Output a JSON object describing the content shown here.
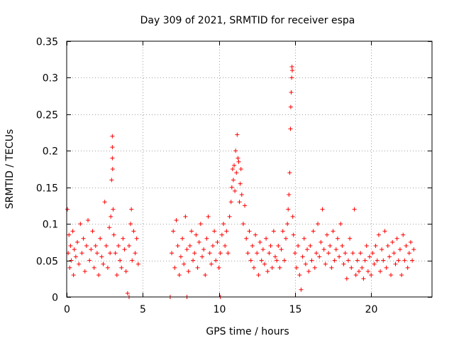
{
  "chart_data": {
    "type": "scatter",
    "title": "Day 309 of 2021, SRMTID for receiver espa",
    "xlabel": "GPS time / hours",
    "ylabel": "SRMTID / TECUs",
    "xlim": [
      0,
      24
    ],
    "ylim": [
      0,
      0.35
    ],
    "x_ticks": [
      0,
      5,
      10,
      15,
      20
    ],
    "x_tick_labels": [
      "0",
      "5",
      "10",
      "15",
      "20"
    ],
    "y_ticks": [
      0,
      0.05,
      0.1,
      0.15,
      0.2,
      0.25,
      0.3,
      0.35
    ],
    "y_tick_labels": [
      "0",
      "0.05",
      "0.1",
      "0.15",
      "0.2",
      "0.25",
      "0.3",
      "0.35"
    ],
    "grid": true,
    "marker": "+",
    "color": "#ff0000",
    "series": [
      {
        "name": "SRMTID",
        "points": [
          [
            0.05,
            0.12
          ],
          [
            0.1,
            0.06
          ],
          [
            0.15,
            0.085
          ],
          [
            0.2,
            0.04
          ],
          [
            0.25,
            0.07
          ],
          [
            0.3,
            0.05
          ],
          [
            0.4,
            0.09
          ],
          [
            0.45,
            0.03
          ],
          [
            0.5,
            0.065
          ],
          [
            0.6,
            0.055
          ],
          [
            0.7,
            0.075
          ],
          [
            0.8,
            0.045
          ],
          [
            0.9,
            0.1
          ],
          [
            1.0,
            0.06
          ],
          [
            1.1,
            0.08
          ],
          [
            1.2,
            0.035
          ],
          [
            1.3,
            0.07
          ],
          [
            1.4,
            0.105
          ],
          [
            1.5,
            0.05
          ],
          [
            1.6,
            0.065
          ],
          [
            1.7,
            0.09
          ],
          [
            1.8,
            0.04
          ],
          [
            1.9,
            0.07
          ],
          [
            2.0,
            0.06
          ],
          [
            2.1,
            0.03
          ],
          [
            2.2,
            0.08
          ],
          [
            2.3,
            0.055
          ],
          [
            2.4,
            0.045
          ],
          [
            2.5,
            0.13
          ],
          [
            2.6,
            0.07
          ],
          [
            2.7,
            0.04
          ],
          [
            2.8,
            0.095
          ],
          [
            2.85,
            0.06
          ],
          [
            2.9,
            0.11
          ],
          [
            2.95,
            0.16
          ],
          [
            3.0,
            0.22
          ],
          [
            3.0,
            0.205
          ],
          [
            3.0,
            0.19
          ],
          [
            3.02,
            0.175
          ],
          [
            3.05,
            0.12
          ],
          [
            3.1,
            0.085
          ],
          [
            3.2,
            0.06
          ],
          [
            3.3,
            0.03
          ],
          [
            3.4,
            0.07
          ],
          [
            3.5,
            0.05
          ],
          [
            3.6,
            0.04
          ],
          [
            3.7,
            0.08
          ],
          [
            3.8,
            0.065
          ],
          [
            3.9,
            0.035
          ],
          [
            4.0,
            0.005
          ],
          [
            4.1,
            0.07
          ],
          [
            4.2,
            0.1
          ],
          [
            4.25,
            0.12
          ],
          [
            4.3,
            0.05
          ],
          [
            4.4,
            0.09
          ],
          [
            4.5,
            0.06
          ],
          [
            4.6,
            0.08
          ],
          [
            4.7,
            0.045
          ],
          [
            6.9,
            0.06
          ],
          [
            7.0,
            0.09
          ],
          [
            7.1,
            0.04
          ],
          [
            7.2,
            0.105
          ],
          [
            7.3,
            0.07
          ],
          [
            7.4,
            0.03
          ],
          [
            7.5,
            0.055
          ],
          [
            7.6,
            0.08
          ],
          [
            7.7,
            0.045
          ],
          [
            7.8,
            0.11
          ],
          [
            7.9,
            0.065
          ],
          [
            8.0,
            0.035
          ],
          [
            8.1,
            0.07
          ],
          [
            8.2,
            0.09
          ],
          [
            8.3,
            0.05
          ],
          [
            8.4,
            0.06
          ],
          [
            8.5,
            0.085
          ],
          [
            8.6,
            0.04
          ],
          [
            8.7,
            0.075
          ],
          [
            8.8,
            0.1
          ],
          [
            8.9,
            0.055
          ],
          [
            9.0,
            0.065
          ],
          [
            9.1,
            0.03
          ],
          [
            9.2,
            0.08
          ],
          [
            9.3,
            0.11
          ],
          [
            9.4,
            0.06
          ],
          [
            9.5,
            0.045
          ],
          [
            9.6,
            0.07
          ],
          [
            9.7,
            0.09
          ],
          [
            9.8,
            0.05
          ],
          [
            9.9,
            0.075
          ],
          [
            10.0,
            0.04
          ],
          [
            10.1,
            0.06
          ],
          [
            10.2,
            0.085
          ],
          [
            10.3,
            0.1
          ],
          [
            10.4,
            0.07
          ],
          [
            10.5,
            0.09
          ],
          [
            10.6,
            0.06
          ],
          [
            10.7,
            0.11
          ],
          [
            10.8,
            0.13
          ],
          [
            10.85,
            0.15
          ],
          [
            10.9,
            0.175
          ],
          [
            10.95,
            0.16
          ],
          [
            11.0,
            0.18
          ],
          [
            11.05,
            0.145
          ],
          [
            11.1,
            0.2
          ],
          [
            11.15,
            0.17
          ],
          [
            11.2,
            0.222
          ],
          [
            11.25,
            0.19
          ],
          [
            11.3,
            0.185
          ],
          [
            11.35,
            0.13
          ],
          [
            11.4,
            0.155
          ],
          [
            11.45,
            0.175
          ],
          [
            11.5,
            0.14
          ],
          [
            11.6,
            0.1
          ],
          [
            11.7,
            0.125
          ],
          [
            11.8,
            0.08
          ],
          [
            11.9,
            0.06
          ],
          [
            12.0,
            0.09
          ],
          [
            12.1,
            0.05
          ],
          [
            12.2,
            0.07
          ],
          [
            12.3,
            0.04
          ],
          [
            12.4,
            0.085
          ],
          [
            12.5,
            0.06
          ],
          [
            12.6,
            0.03
          ],
          [
            12.7,
            0.075
          ],
          [
            12.8,
            0.05
          ],
          [
            12.9,
            0.065
          ],
          [
            13.0,
            0.045
          ],
          [
            13.1,
            0.08
          ],
          [
            13.2,
            0.035
          ],
          [
            13.3,
            0.06
          ],
          [
            13.4,
            0.07
          ],
          [
            13.5,
            0.04
          ],
          [
            13.6,
            0.09
          ],
          [
            13.7,
            0.055
          ],
          [
            13.8,
            0.05
          ],
          [
            13.9,
            0.07
          ],
          [
            14.0,
            0.04
          ],
          [
            14.1,
            0.065
          ],
          [
            14.2,
            0.09
          ],
          [
            14.3,
            0.05
          ],
          [
            14.4,
            0.08
          ],
          [
            14.5,
            0.1
          ],
          [
            14.55,
            0.12
          ],
          [
            14.6,
            0.14
          ],
          [
            14.65,
            0.17
          ],
          [
            14.7,
            0.23
          ],
          [
            14.72,
            0.26
          ],
          [
            14.75,
            0.28
          ],
          [
            14.78,
            0.3
          ],
          [
            14.8,
            0.315
          ],
          [
            14.82,
            0.31
          ],
          [
            14.85,
            0.11
          ],
          [
            14.9,
            0.085
          ],
          [
            15.0,
            0.06
          ],
          [
            15.1,
            0.04
          ],
          [
            15.2,
            0.07
          ],
          [
            15.3,
            0.03
          ],
          [
            15.4,
            0.01
          ],
          [
            15.5,
            0.055
          ],
          [
            15.6,
            0.08
          ],
          [
            15.7,
            0.045
          ],
          [
            15.8,
            0.065
          ],
          [
            15.9,
            0.035
          ],
          [
            16.0,
            0.07
          ],
          [
            16.1,
            0.05
          ],
          [
            16.2,
            0.09
          ],
          [
            16.3,
            0.04
          ],
          [
            16.4,
            0.06
          ],
          [
            16.5,
            0.1
          ],
          [
            16.6,
            0.055
          ],
          [
            16.7,
            0.075
          ],
          [
            16.8,
            0.12
          ],
          [
            16.9,
            0.065
          ],
          [
            17.0,
            0.045
          ],
          [
            17.1,
            0.085
          ],
          [
            17.2,
            0.06
          ],
          [
            17.3,
            0.07
          ],
          [
            17.4,
            0.04
          ],
          [
            17.5,
            0.09
          ],
          [
            17.6,
            0.05
          ],
          [
            17.7,
            0.065
          ],
          [
            17.8,
            0.08
          ],
          [
            17.9,
            0.055
          ],
          [
            18.0,
            0.1
          ],
          [
            18.1,
            0.07
          ],
          [
            18.2,
            0.045
          ],
          [
            18.3,
            0.06
          ],
          [
            18.4,
            0.025
          ],
          [
            18.5,
            0.05
          ],
          [
            18.6,
            0.08
          ],
          [
            18.7,
            0.04
          ],
          [
            18.8,
            0.06
          ],
          [
            18.9,
            0.12
          ],
          [
            19.0,
            0.03
          ],
          [
            19.1,
            0.05
          ],
          [
            19.2,
            0.035
          ],
          [
            19.3,
            0.06
          ],
          [
            19.4,
            0.04
          ],
          [
            19.5,
            0.025
          ],
          [
            19.6,
            0.05
          ],
          [
            19.7,
            0.07
          ],
          [
            19.8,
            0.035
          ],
          [
            19.9,
            0.055
          ],
          [
            20.0,
            0.03
          ],
          [
            20.1,
            0.06
          ],
          [
            20.2,
            0.045
          ],
          [
            20.3,
            0.07
          ],
          [
            20.4,
            0.05
          ],
          [
            20.5,
            0.085
          ],
          [
            20.6,
            0.035
          ],
          [
            20.7,
            0.065
          ],
          [
            20.8,
            0.05
          ],
          [
            20.9,
            0.09
          ],
          [
            21.0,
            0.04
          ],
          [
            21.1,
            0.07
          ],
          [
            21.2,
            0.055
          ],
          [
            21.3,
            0.03
          ],
          [
            21.4,
            0.075
          ],
          [
            21.5,
            0.06
          ],
          [
            21.6,
            0.045
          ],
          [
            21.7,
            0.08
          ],
          [
            21.8,
            0.05
          ],
          [
            21.9,
            0.065
          ],
          [
            22.0,
            0.03
          ],
          [
            22.1,
            0.085
          ],
          [
            22.2,
            0.05
          ],
          [
            22.3,
            0.07
          ],
          [
            22.4,
            0.04
          ],
          [
            22.5,
            0.06
          ],
          [
            22.6,
            0.075
          ],
          [
            22.7,
            0.05
          ],
          [
            22.8,
            0.065
          ],
          [
            4.1,
            0.0
          ],
          [
            6.8,
            0.0
          ],
          [
            7.9,
            0.0
          ],
          [
            10.1,
            0.0
          ]
        ]
      }
    ]
  }
}
